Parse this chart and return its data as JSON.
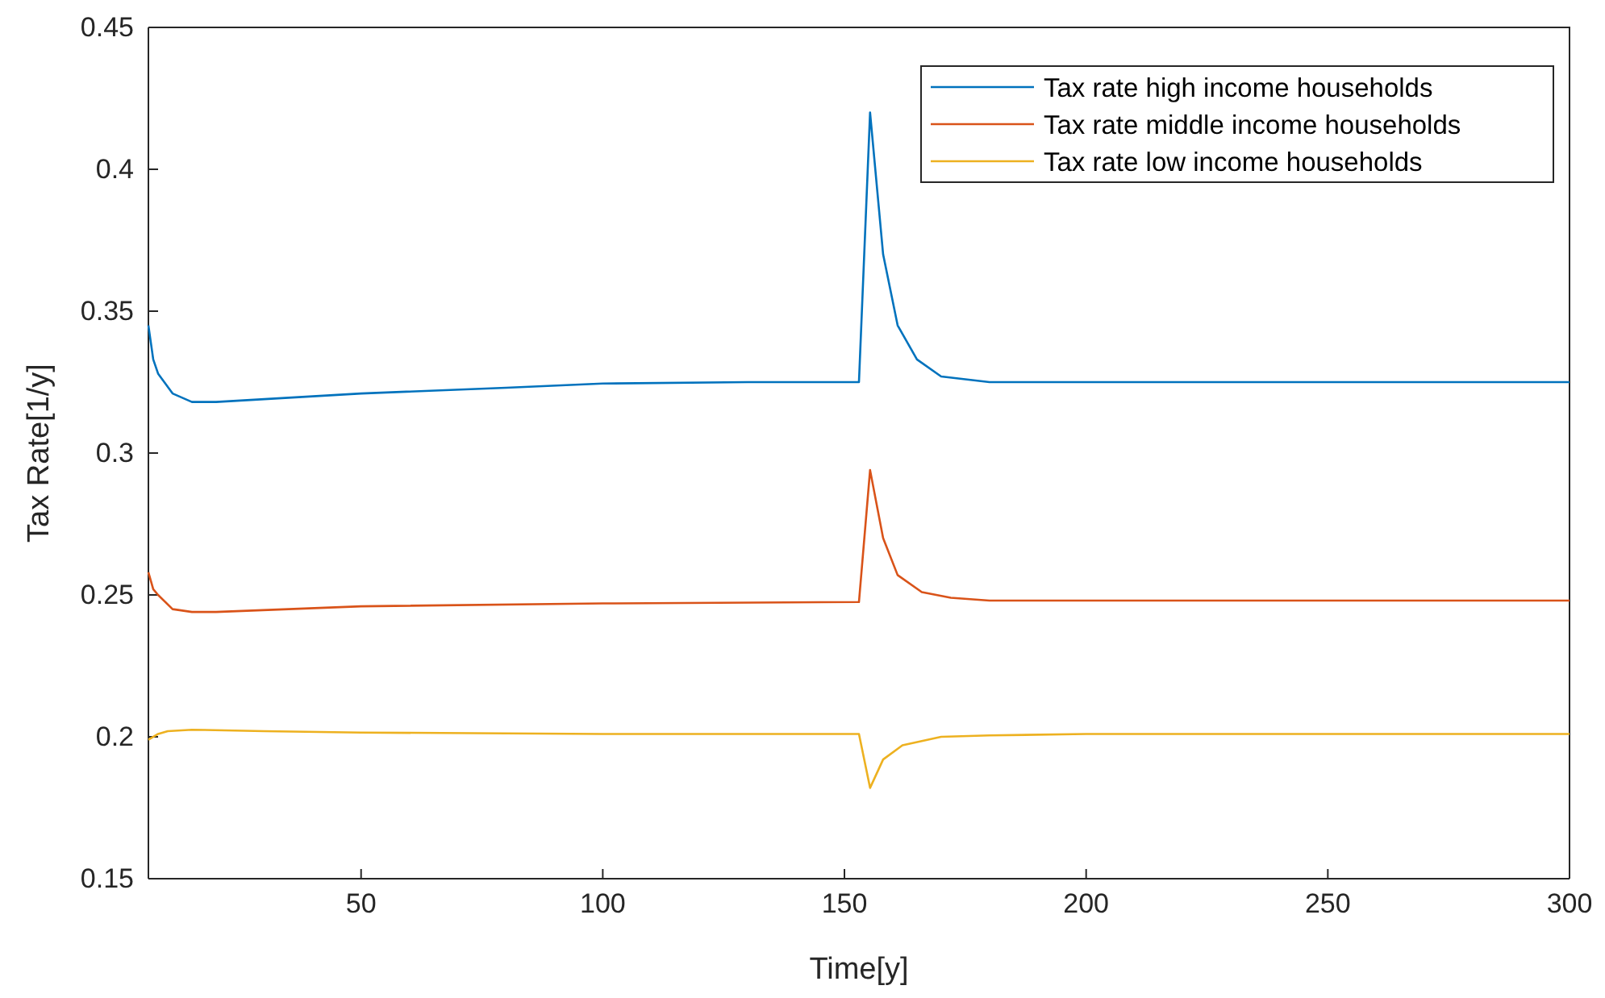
{
  "chart_data": {
    "type": "line",
    "xlabel": "Time[y]",
    "ylabel": "Tax Rate[1/y]",
    "xlim": [
      6,
      300
    ],
    "xticks": [
      50,
      100,
      150,
      200,
      250,
      300
    ],
    "ylim": [
      0.15,
      0.45
    ],
    "yticks": [
      0.15,
      0.2,
      0.25,
      0.3,
      0.35,
      0.4,
      0.45
    ],
    "grid": false,
    "legend": "top right",
    "line_style": "solid",
    "marker": "none",
    "series": [
      {
        "name": "Tax rate high income households",
        "color": "#0072bd",
        "x": [
          6,
          7,
          8,
          11,
          15,
          20,
          30,
          50,
          80,
          100,
          130,
          153,
          155.3,
          158,
          161,
          165,
          170,
          180,
          200,
          250,
          300
        ],
        "values": [
          0.345,
          0.333,
          0.328,
          0.321,
          0.318,
          0.318,
          0.319,
          0.321,
          0.323,
          0.3245,
          0.325,
          0.325,
          0.42,
          0.37,
          0.345,
          0.333,
          0.327,
          0.325,
          0.325,
          0.325,
          0.325
        ]
      },
      {
        "name": "Tax rate middle income households",
        "color": "#d95319",
        "x": [
          6,
          7,
          8,
          11,
          15,
          20,
          50,
          100,
          153,
          155.3,
          158,
          161,
          166,
          172,
          180,
          200,
          250,
          300
        ],
        "values": [
          0.258,
          0.252,
          0.25,
          0.245,
          0.244,
          0.244,
          0.246,
          0.247,
          0.2475,
          0.294,
          0.27,
          0.257,
          0.251,
          0.249,
          0.248,
          0.248,
          0.248,
          0.248
        ]
      },
      {
        "name": "Tax rate low income households",
        "color": "#edb120",
        "x": [
          6,
          8,
          10,
          15,
          30,
          50,
          100,
          153,
          155.3,
          158,
          162,
          170,
          180,
          200,
          250,
          300
        ],
        "values": [
          0.199,
          0.201,
          0.202,
          0.2025,
          0.202,
          0.2015,
          0.201,
          0.201,
          0.182,
          0.192,
          0.197,
          0.2,
          0.2005,
          0.201,
          0.201,
          0.201
        ]
      }
    ]
  }
}
